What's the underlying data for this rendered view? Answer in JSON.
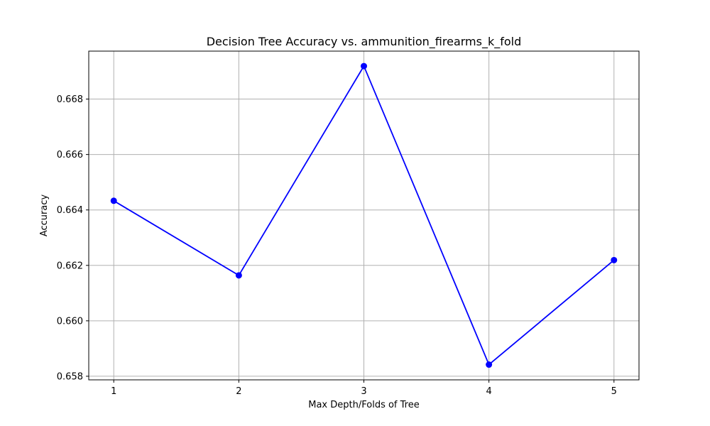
{
  "chart_data": {
    "type": "line",
    "title": "Decision Tree Accuracy vs. ammunition_firearms_k_fold",
    "xlabel": "Max Depth/Folds of Tree",
    "ylabel": "Accuracy",
    "x": [
      1,
      2,
      3,
      4,
      5
    ],
    "x_ticks": [
      "1",
      "2",
      "3",
      "4",
      "5"
    ],
    "xlim": [
      0.8,
      5.2
    ],
    "y_ticks": [
      "0.658",
      "0.660",
      "0.662",
      "0.664",
      "0.666",
      "0.668"
    ],
    "y_tick_values": [
      0.658,
      0.66,
      0.662,
      0.664,
      0.666,
      0.668
    ],
    "ylim": [
      0.65787,
      0.66973
    ],
    "grid": true,
    "series": [
      {
        "values": [
          0.66433,
          0.66164,
          0.66919,
          0.65842,
          0.66219
        ],
        "color": "#0000ff",
        "marker": "circle"
      }
    ]
  }
}
